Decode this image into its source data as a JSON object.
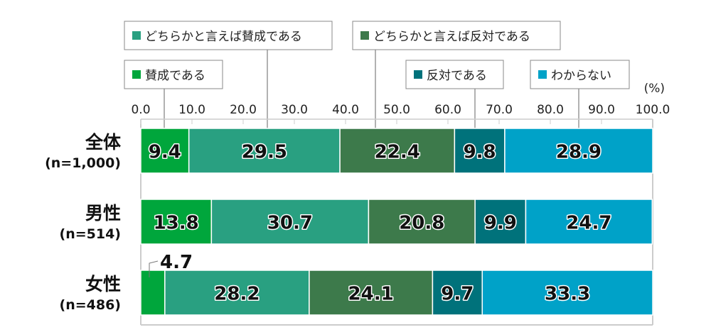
{
  "chart_data": {
    "type": "bar",
    "orientation": "horizontal",
    "stacked": true,
    "unit_label": "(%)",
    "xlim": [
      0,
      100
    ],
    "x_ticks": [
      "0.0",
      "10.0",
      "20.0",
      "30.0",
      "40.0",
      "50.0",
      "60.0",
      "70.0",
      "80.0",
      "90.0",
      "100.0"
    ],
    "grid": false,
    "legend_placement": "top (callout boxes)",
    "categories": [
      {
        "label": "全体",
        "n": "(n=1,000)"
      },
      {
        "label": "男性",
        "n": "(n=514)"
      },
      {
        "label": "女性",
        "n": "(n=486)"
      }
    ],
    "series": [
      {
        "name": "賛成である",
        "color": "#00a63c",
        "values": [
          9.4,
          13.8,
          4.7
        ]
      },
      {
        "name": "どちらかと言えば賛成である",
        "color": "#29a081",
        "values": [
          29.5,
          30.7,
          28.2
        ]
      },
      {
        "name": "どちらかと言えば反対である",
        "color": "#3d7a4b",
        "values": [
          22.4,
          20.8,
          24.1
        ]
      },
      {
        "name": "反対である",
        "color": "#00727b",
        "values": [
          9.8,
          9.9,
          9.7
        ]
      },
      {
        "name": "わからない",
        "color": "#00a2c8",
        "values": [
          28.9,
          24.7,
          33.3
        ]
      }
    ]
  }
}
